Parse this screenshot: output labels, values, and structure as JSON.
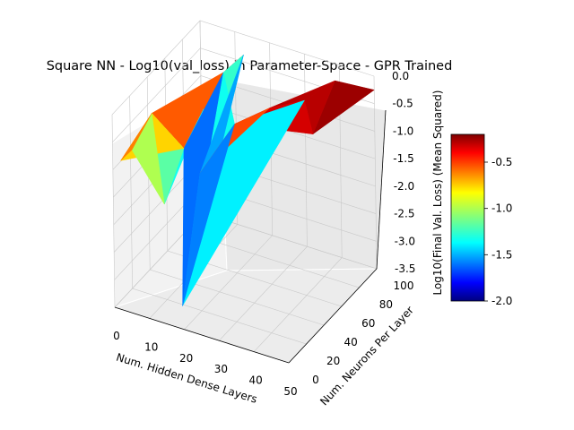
{
  "chart_data": {
    "type": "surface",
    "title": "Square NN - Log10(val_loss) in Parameter-Space - GPR Trained",
    "xlabel": "Num. Hidden Dense Layers",
    "ylabel": "Num. Neurons Per Layer",
    "zlabel": "Log10(Final Val. Loss)  (Mean Squared)",
    "x_ticks": [
      "0",
      "10",
      "20",
      "30",
      "40",
      "50"
    ],
    "y_ticks": [
      "0",
      "20",
      "40",
      "60",
      "80",
      "100"
    ],
    "z_ticks": [
      "0.0",
      "-0.5",
      "-1.0",
      "-1.5",
      "-2.0",
      "-2.5",
      "-3.0",
      "-3.5"
    ],
    "xlim": [
      0,
      50
    ],
    "ylim": [
      0,
      100
    ],
    "zlim": [
      -3.5,
      0.0
    ],
    "colormap": "jet",
    "colorbar": {
      "ticks": [
        "-0.5",
        "-1.0",
        "-1.5",
        "-2.0"
      ],
      "range": [
        -2.0,
        -0.2
      ]
    },
    "grid": true,
    "surface_points": [
      {
        "x": 1,
        "y": 5,
        "z": -0.9
      },
      {
        "x": 3,
        "y": 10,
        "z": -0.75
      },
      {
        "x": 5,
        "y": 25,
        "z": -0.3
      },
      {
        "x": 7,
        "y": 30,
        "z": -2.0
      },
      {
        "x": 9,
        "y": 45,
        "z": -1.2
      },
      {
        "x": 11,
        "y": 60,
        "z": -0.7
      },
      {
        "x": 13,
        "y": 75,
        "z": -0.25
      },
      {
        "x": 15,
        "y": 90,
        "z": -0.15
      },
      {
        "x": 17,
        "y": 10,
        "z": -3.3
      },
      {
        "x": 20,
        "y": 20,
        "z": -1.0
      },
      {
        "x": 25,
        "y": 40,
        "z": -0.35
      },
      {
        "x": 30,
        "y": 60,
        "z": -0.3
      },
      {
        "x": 35,
        "y": 80,
        "z": -0.4
      },
      {
        "x": 40,
        "y": 95,
        "z": -0.2
      },
      {
        "x": 45,
        "y": 50,
        "z": -0.3
      },
      {
        "x": 50,
        "y": 100,
        "z": -0.25
      }
    ]
  }
}
